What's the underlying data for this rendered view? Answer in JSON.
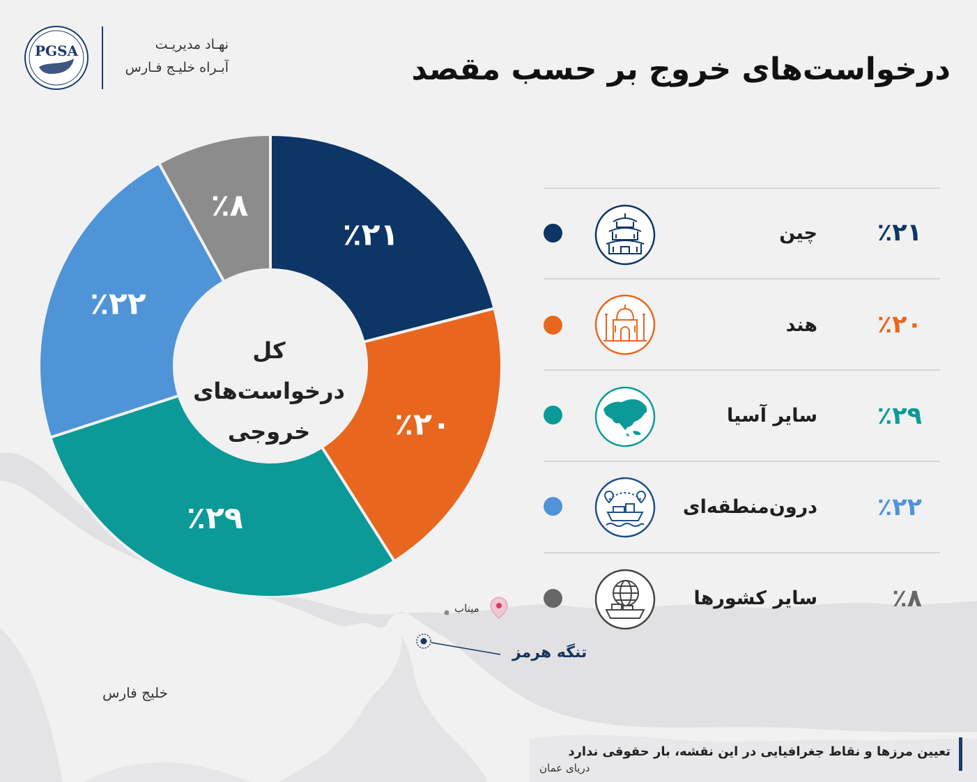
{
  "header": {
    "logo_text": "PGSA",
    "org_line1": "نهـاد مدیریـت",
    "org_line2": "آبـراه خلیـج فـارس",
    "title": "درخواست‌های خروج بر حسب مقصد"
  },
  "chart_data": {
    "type": "pie",
    "title": "درخواست‌های خروج بر حسب مقصد",
    "center_label": "کل درخواست‌های خروجی",
    "categories": [
      "چین",
      "هند",
      "سایر آسیا",
      "درون‌منطقه‌ای",
      "سایر کشورها"
    ],
    "values": [
      21,
      20,
      29,
      22,
      8
    ],
    "value_labels": [
      "٪۲۱",
      "٪۲۰",
      "٪۲۹",
      "٪۲۲",
      "٪۸"
    ],
    "colors": [
      "#0d3565",
      "#e8661e",
      "#0b9a97",
      "#4f94d7",
      "#8c8c8c"
    ],
    "legend_placement": "right"
  },
  "legend": {
    "items": [
      {
        "name": "چین",
        "value": "٪۲۱",
        "color": "#0d3565",
        "icon": "pagoda-icon"
      },
      {
        "name": "هند",
        "value": "٪۲۰",
        "color": "#e8661e",
        "icon": "taj-mahal-icon"
      },
      {
        "name": "سایر آسیا",
        "value": "٪۲۹",
        "color": "#0b9a97",
        "icon": "asia-map-icon"
      },
      {
        "name": "درون‌منطقه‌ای",
        "value": "٪۲۲",
        "color": "#4f94d7",
        "icon": "cargo-ship-route-icon"
      },
      {
        "name": "سایر کشورها",
        "value": "٪۸",
        "color": "#8c8c8c",
        "icon": "globe-ship-icon"
      }
    ]
  },
  "map": {
    "minab": "میناب",
    "hormuz": "تنگه هرمز",
    "gulf": "خلیج فارس",
    "oman_sea": "دریای عمان",
    "disclaimer": "تعیین مرزها و نقاط جغرافیایی در این نقشه، بار حقوقی ندارد"
  }
}
